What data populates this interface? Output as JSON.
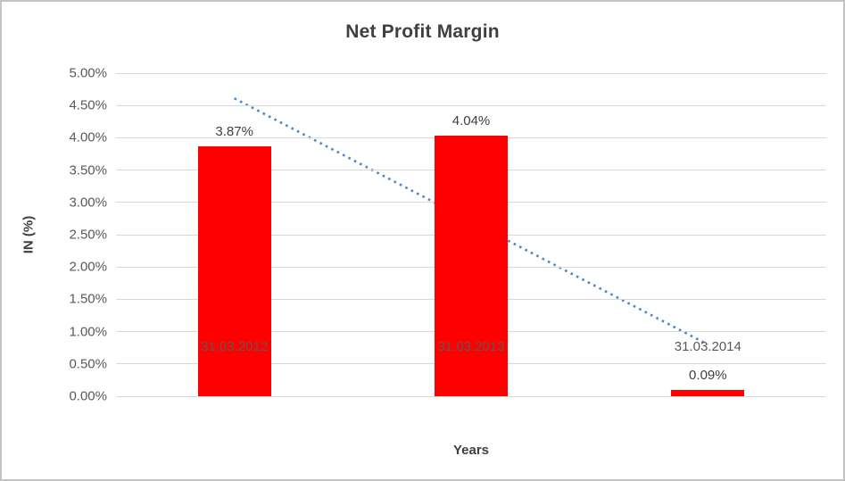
{
  "chart_data": {
    "type": "bar",
    "title": "Net Profit Margin",
    "xlabel": "Years",
    "ylabel": "IN (%)",
    "categories": [
      "31.03.2012",
      "31.03.2013",
      "31.03.2014"
    ],
    "values": [
      3.87,
      4.04,
      0.09
    ],
    "data_labels": [
      "3.87%",
      "4.04%",
      "0.09%"
    ],
    "ylim": [
      0,
      5
    ],
    "ystep": 0.5,
    "yticks": [
      "5.00%",
      "4.50%",
      "4.00%",
      "3.50%",
      "3.00%",
      "2.50%",
      "2.00%",
      "1.50%",
      "1.00%",
      "0.50%",
      "0.00%"
    ],
    "grid": "horizontal",
    "legend": "none",
    "bar_color": "#ff0000",
    "gridline_color": "#d9d9d9",
    "trendline": {
      "type": "linear",
      "style": "dotted",
      "color": "#4a86c8",
      "start_value": 4.61,
      "end_value": 0.8,
      "drawn_behind_bars": true
    }
  }
}
